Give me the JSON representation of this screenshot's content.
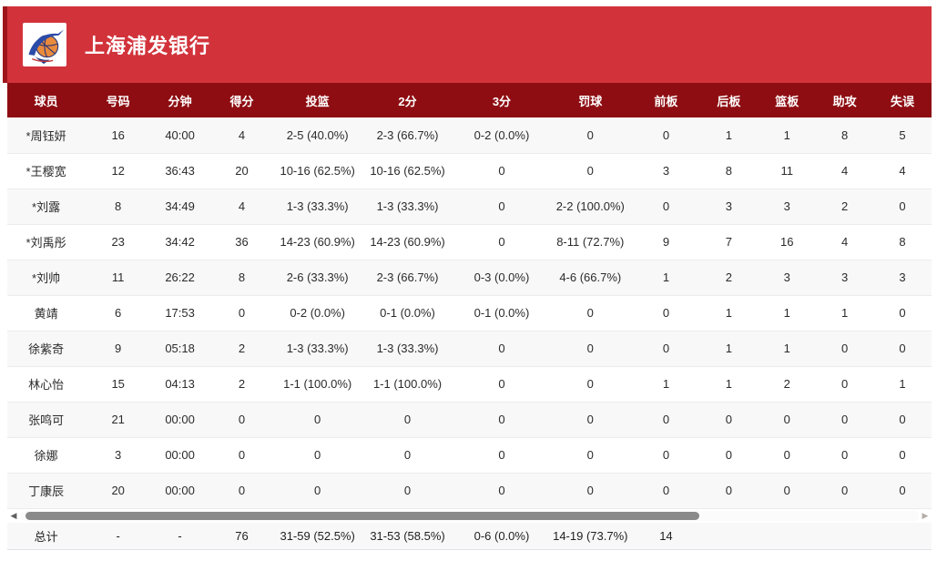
{
  "header": {
    "title": "上海浦发银行",
    "logo_icon": "marlin-basketball-logo"
  },
  "table": {
    "columns": [
      "球员",
      "号码",
      "分钟",
      "得分",
      "投篮",
      "2分",
      "3分",
      "罚球",
      "前板",
      "后板",
      "篮板",
      "助攻",
      "失误"
    ],
    "rows": [
      [
        "*周钰妍",
        "16",
        "40:00",
        "4",
        "2-5 (40.0%)",
        "2-3 (66.7%)",
        "0-2 (0.0%)",
        "0",
        "0",
        "1",
        "1",
        "8",
        "5"
      ],
      [
        "*王樱宽",
        "12",
        "36:43",
        "20",
        "10-16 (62.5%)",
        "10-16 (62.5%)",
        "0",
        "0",
        "3",
        "8",
        "11",
        "4",
        "4"
      ],
      [
        "*刘露",
        "8",
        "34:49",
        "4",
        "1-3 (33.3%)",
        "1-3 (33.3%)",
        "0",
        "2-2 (100.0%)",
        "0",
        "3",
        "3",
        "2",
        "0"
      ],
      [
        "*刘禹彤",
        "23",
        "34:42",
        "36",
        "14-23 (60.9%)",
        "14-23 (60.9%)",
        "0",
        "8-11 (72.7%)",
        "9",
        "7",
        "16",
        "4",
        "8"
      ],
      [
        "*刘帅",
        "11",
        "26:22",
        "8",
        "2-6 (33.3%)",
        "2-3 (66.7%)",
        "0-3 (0.0%)",
        "4-6 (66.7%)",
        "1",
        "2",
        "3",
        "3",
        "3"
      ],
      [
        "黄靖",
        "6",
        "17:53",
        "0",
        "0-2 (0.0%)",
        "0-1 (0.0%)",
        "0-1 (0.0%)",
        "0",
        "0",
        "1",
        "1",
        "1",
        "0"
      ],
      [
        "徐紫奇",
        "9",
        "05:18",
        "2",
        "1-3 (33.3%)",
        "1-3 (33.3%)",
        "0",
        "0",
        "0",
        "1",
        "1",
        "0",
        "0"
      ],
      [
        "林心怡",
        "15",
        "04:13",
        "2",
        "1-1 (100.0%)",
        "1-1 (100.0%)",
        "0",
        "0",
        "1",
        "1",
        "2",
        "0",
        "1"
      ],
      [
        "张鸣可",
        "21",
        "00:00",
        "0",
        "0",
        "0",
        "0",
        "0",
        "0",
        "0",
        "0",
        "0",
        "0"
      ],
      [
        "徐娜",
        "3",
        "00:00",
        "0",
        "0",
        "0",
        "0",
        "0",
        "0",
        "0",
        "0",
        "0",
        "0"
      ],
      [
        "丁康辰",
        "20",
        "00:00",
        "0",
        "0",
        "0",
        "0",
        "0",
        "0",
        "0",
        "0",
        "0",
        "0"
      ]
    ],
    "totals": [
      "总计",
      "-",
      "-",
      "76",
      "31-59 (52.5%)",
      "31-53 (58.5%)",
      "0-6 (0.0%)",
      "14-19 (73.7%)",
      "14",
      "",
      "",
      "",
      ""
    ]
  },
  "scrollbar": {
    "left_arrow": "◀",
    "right_arrow": "▶"
  },
  "colors": {
    "banner_red": "#d2333b",
    "banner_edge_dark_red": "#9e161b",
    "table_header_red": "#8e0d12",
    "row_alt_gray": "#f8f8f8",
    "totals_bg": "#f3f5f8",
    "scroll_thumb_gray": "#8a8a8a"
  }
}
